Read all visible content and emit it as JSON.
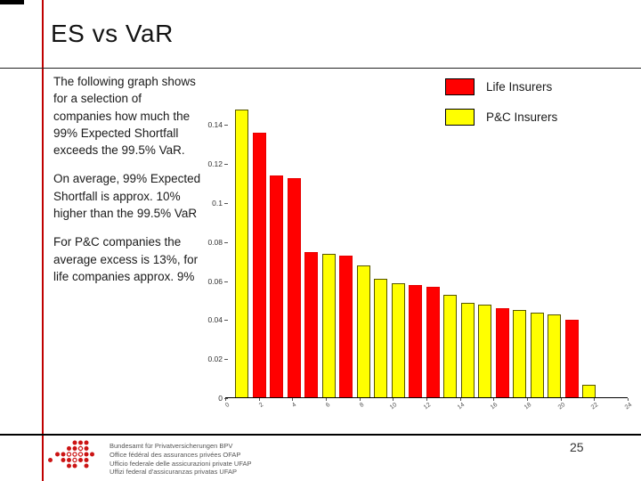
{
  "slide": {
    "title": "ES vs VaR"
  },
  "body": {
    "paragraphs": [
      "The following graph shows for a selection of companies how much the 99% Expected Shortfall exceeds the 99.5% VaR.",
      "On average, 99% Expected Shortfall is approx. 10% higher than the 99.5% VaR",
      "For P&C companies the average excess is 13%, for life companies approx. 9%"
    ]
  },
  "chart_data": {
    "type": "bar",
    "title": "",
    "xlabel": "",
    "ylabel": "",
    "ylim": [
      0,
      0.15
    ],
    "grid": false,
    "legend_position": "top-right",
    "y_ticks": [
      {
        "value": 0.14,
        "label": "0.14"
      },
      {
        "value": 0.12,
        "label": "0.12"
      },
      {
        "value": 0.1,
        "label": "0.1"
      },
      {
        "value": 0.08,
        "label": "0.08"
      },
      {
        "value": 0.06,
        "label": "0.06"
      },
      {
        "value": 0.04,
        "label": "0.04"
      },
      {
        "value": 0.02,
        "label": "0.02"
      },
      {
        "value": 0,
        "label": "0"
      }
    ],
    "x_ticks": [
      "0",
      "2",
      "4",
      "6",
      "8",
      "10",
      "12",
      "14",
      "16",
      "18",
      "20",
      "22",
      "24"
    ],
    "series": [
      {
        "name": "Life Insurers",
        "color": "#ff0000",
        "border": "#e60000"
      },
      {
        "name": "P&C Insurers",
        "color": "#ffff00",
        "border": "#555500"
      }
    ],
    "bars": [
      {
        "series": "P&C Insurers",
        "value": 0.148
      },
      {
        "series": "Life Insurers",
        "value": 0.136
      },
      {
        "series": "Life Insurers",
        "value": 0.114
      },
      {
        "series": "Life Insurers",
        "value": 0.113
      },
      {
        "series": "Life Insurers",
        "value": 0.075
      },
      {
        "series": "P&C Insurers",
        "value": 0.074
      },
      {
        "series": "Life Insurers",
        "value": 0.073
      },
      {
        "series": "P&C Insurers",
        "value": 0.068
      },
      {
        "series": "P&C Insurers",
        "value": 0.061
      },
      {
        "series": "P&C Insurers",
        "value": 0.059
      },
      {
        "series": "Life Insurers",
        "value": 0.058
      },
      {
        "series": "Life Insurers",
        "value": 0.057
      },
      {
        "series": "P&C Insurers",
        "value": 0.053
      },
      {
        "series": "P&C Insurers",
        "value": 0.049
      },
      {
        "series": "P&C Insurers",
        "value": 0.048
      },
      {
        "series": "Life Insurers",
        "value": 0.046
      },
      {
        "series": "P&C Insurers",
        "value": 0.045
      },
      {
        "series": "P&C Insurers",
        "value": 0.044
      },
      {
        "series": "P&C Insurers",
        "value": 0.043
      },
      {
        "series": "Life Insurers",
        "value": 0.04
      },
      {
        "series": "P&C Insurers",
        "value": 0.007
      }
    ]
  },
  "footer": {
    "org_lines": [
      "Bundesamt für Privatversicherungen BPV",
      "Office fédéral des assurances privées OFAP",
      "Ufficio federale delle assicurazioni private UFAP",
      "Uffizi federal d'assicuranzas privatas UFAP"
    ],
    "page_number": "25"
  }
}
